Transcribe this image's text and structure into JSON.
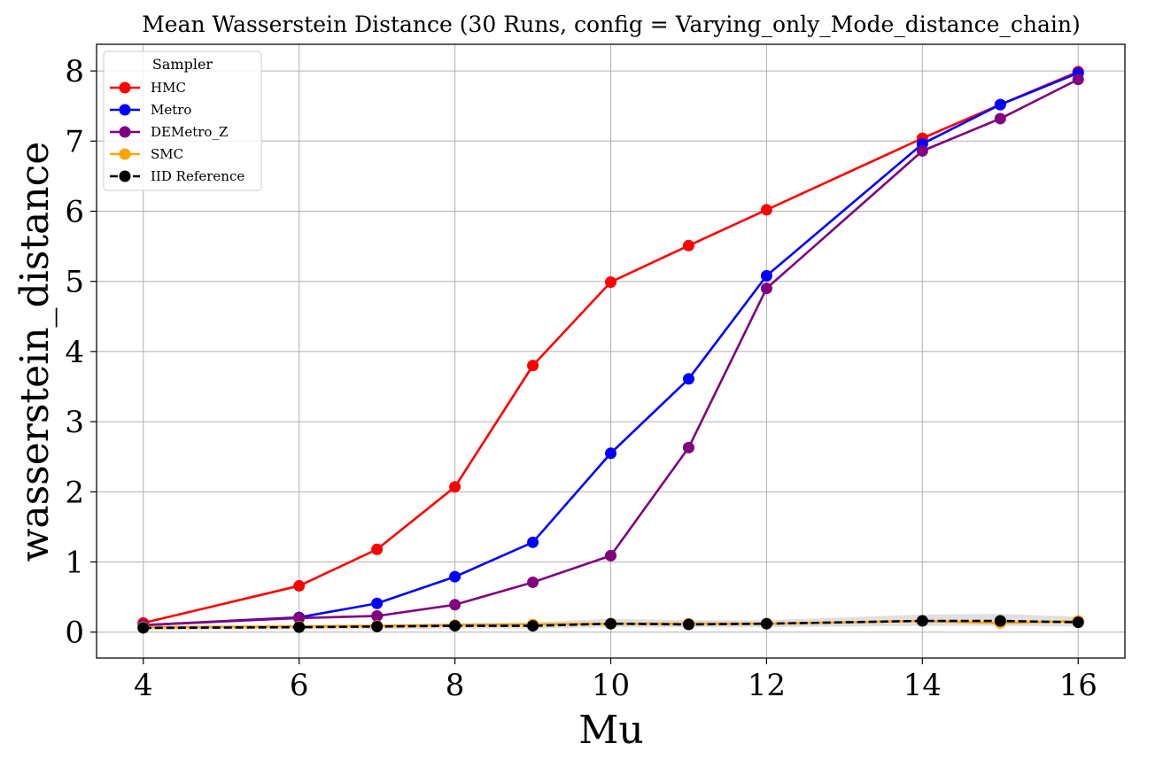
{
  "chart_data": {
    "type": "line",
    "title": "Mean Wasserstein Distance (30 Runs, config = Varying_only_Mode_distance_chain)",
    "xlabel": "Mu",
    "ylabel": "wasserstein_distance",
    "xlim": [
      3.4,
      16.6
    ],
    "ylim": [
      -0.37,
      8.38
    ],
    "xticks": [
      4,
      6,
      8,
      10,
      12,
      14,
      16
    ],
    "yticks": [
      0,
      1,
      2,
      3,
      4,
      5,
      6,
      7,
      8
    ],
    "grid": true,
    "legend": {
      "title": "Sampler",
      "position": "top-left"
    },
    "x": [
      4,
      6,
      7,
      8,
      9,
      10,
      11,
      12,
      14,
      15,
      16
    ],
    "series": [
      {
        "name": "HMC",
        "color": "#ff0000",
        "dashed": false,
        "values": [
          0.13,
          0.66,
          1.18,
          2.07,
          3.8,
          4.99,
          5.51,
          6.02,
          7.04,
          7.52,
          7.99
        ]
      },
      {
        "name": "Metro",
        "color": "#0000ff",
        "dashed": false,
        "values": [
          0.1,
          0.21,
          0.41,
          0.79,
          1.28,
          2.55,
          3.61,
          5.08,
          6.96,
          7.52,
          7.97
        ]
      },
      {
        "name": "DEMetro_Z",
        "color": "#800080",
        "dashed": false,
        "values": [
          0.1,
          0.2,
          0.23,
          0.39,
          0.71,
          1.09,
          2.63,
          4.9,
          6.86,
          7.32,
          7.88
        ]
      },
      {
        "name": "SMC",
        "color": "#ffa500",
        "dashed": false,
        "values": [
          0.07,
          0.08,
          0.09,
          0.1,
          0.11,
          0.12,
          0.12,
          0.12,
          0.16,
          0.13,
          0.16
        ]
      },
      {
        "name": "IID Reference",
        "color": "#000000",
        "dashed": true,
        "values": [
          0.06,
          0.07,
          0.08,
          0.09,
          0.09,
          0.12,
          0.11,
          0.12,
          0.16,
          0.16,
          0.14
        ]
      }
    ],
    "iid_band": {
      "lower": [
        0.03,
        0.04,
        0.04,
        0.05,
        0.05,
        0.07,
        0.07,
        0.07,
        0.09,
        0.09,
        0.08
      ],
      "upper": [
        0.09,
        0.1,
        0.11,
        0.13,
        0.14,
        0.19,
        0.17,
        0.17,
        0.25,
        0.26,
        0.22
      ]
    }
  }
}
